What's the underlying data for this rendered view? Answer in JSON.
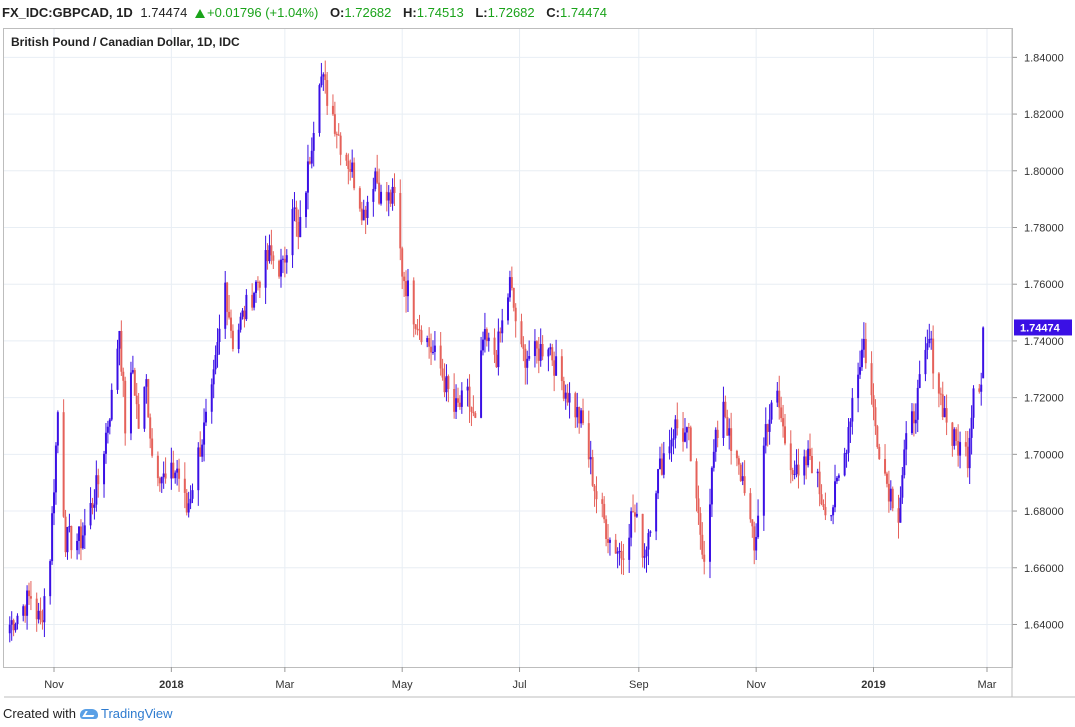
{
  "header": {
    "symbol": "FX_IDC:GBPCAD, 1D",
    "last": "1.74474",
    "change": "+0.01796 (+1.04%)",
    "open_label": "O:",
    "open": "1.72682",
    "high_label": "H:",
    "high": "1.74513",
    "low_label": "L:",
    "low": "1.72682",
    "close_label": "C:",
    "close": "1.74474"
  },
  "footer": {
    "created_with": "Created with",
    "brand": "TradingView"
  },
  "colors": {
    "up": "#3a10e5",
    "down": "#e5615a",
    "grid": "#e8eef4",
    "axis_text": "#333333",
    "price_tag": "#3a10e5"
  },
  "chart_data": {
    "type": "candlestick",
    "title": "British Pound / Canadian Dollar, 1D, IDC",
    "ylim": [
      1.625,
      1.85
    ],
    "yticks": [
      "1.64000",
      "1.66000",
      "1.68000",
      "1.70000",
      "1.72000",
      "1.74000",
      "1.76000",
      "1.78000",
      "1.80000",
      "1.82000",
      "1.84000"
    ],
    "xticks": [
      {
        "label": "Nov",
        "x": "2017-11-01",
        "bold": false
      },
      {
        "label": "2018",
        "x": "2018-01-01",
        "bold": true
      },
      {
        "label": "Mar",
        "x": "2018-03-01",
        "bold": false
      },
      {
        "label": "May",
        "x": "2018-05-01",
        "bold": false
      },
      {
        "label": "Jul",
        "x": "2018-07-01",
        "bold": false
      },
      {
        "label": "Sep",
        "x": "2018-09-01",
        "bold": false
      },
      {
        "label": "Nov",
        "x": "2018-11-01",
        "bold": false
      },
      {
        "label": "2019",
        "x": "2019-01-01",
        "bold": true
      },
      {
        "label": "Mar",
        "x": "2019-03-01",
        "bold": false
      }
    ],
    "x_range": [
      "2017-10-06",
      "2019-03-14"
    ],
    "last_price_label": "1.74474",
    "close_series": {
      "start": "2017-10-09",
      "end": "2019-02-27",
      "anchors": [
        [
          "2017-10-09",
          1.64
        ],
        [
          "2017-10-20",
          1.65
        ],
        [
          "2017-10-25",
          1.64
        ],
        [
          "2017-10-30",
          1.665
        ],
        [
          "2017-11-03",
          1.715
        ],
        [
          "2017-11-07",
          1.67
        ],
        [
          "2017-11-15",
          1.67
        ],
        [
          "2017-11-24",
          1.69
        ],
        [
          "2017-12-01",
          1.72
        ],
        [
          "2017-12-05",
          1.745
        ],
        [
          "2017-12-08",
          1.71
        ],
        [
          "2017-12-12",
          1.73
        ],
        [
          "2017-12-15",
          1.71
        ],
        [
          "2017-12-19",
          1.725
        ],
        [
          "2017-12-22",
          1.7
        ],
        [
          "2017-12-29",
          1.69
        ],
        [
          "2018-01-04",
          1.695
        ],
        [
          "2018-01-09",
          1.68
        ],
        [
          "2018-01-15",
          1.7
        ],
        [
          "2018-01-22",
          1.72
        ],
        [
          "2018-01-29",
          1.76
        ],
        [
          "2018-02-02",
          1.74
        ],
        [
          "2018-02-08",
          1.75
        ],
        [
          "2018-02-14",
          1.76
        ],
        [
          "2018-02-21",
          1.77
        ],
        [
          "2018-02-28",
          1.765
        ],
        [
          "2018-03-05",
          1.79
        ],
        [
          "2018-03-08",
          1.775
        ],
        [
          "2018-03-13",
          1.8
        ],
        [
          "2018-03-19",
          1.835
        ],
        [
          "2018-03-26",
          1.82
        ],
        [
          "2018-03-30",
          1.81
        ],
        [
          "2018-04-05",
          1.8
        ],
        [
          "2018-04-11",
          1.785
        ],
        [
          "2018-04-17",
          1.8
        ],
        [
          "2018-04-20",
          1.79
        ],
        [
          "2018-04-27",
          1.79
        ],
        [
          "2018-05-01",
          1.765
        ],
        [
          "2018-05-07",
          1.75
        ],
        [
          "2018-05-14",
          1.74
        ],
        [
          "2018-05-21",
          1.73
        ],
        [
          "2018-05-28",
          1.715
        ],
        [
          "2018-06-04",
          1.72
        ],
        [
          "2018-06-08",
          1.71
        ],
        [
          "2018-06-12",
          1.74
        ],
        [
          "2018-06-19",
          1.735
        ],
        [
          "2018-06-26",
          1.76
        ],
        [
          "2018-07-02",
          1.735
        ],
        [
          "2018-07-09",
          1.735
        ],
        [
          "2018-07-16",
          1.74
        ],
        [
          "2018-07-20",
          1.73
        ],
        [
          "2018-07-27",
          1.72
        ],
        [
          "2018-08-03",
          1.71
        ],
        [
          "2018-08-10",
          1.685
        ],
        [
          "2018-08-17",
          1.67
        ],
        [
          "2018-08-23",
          1.665
        ],
        [
          "2018-08-29",
          1.68
        ],
        [
          "2018-09-04",
          1.665
        ],
        [
          "2018-09-10",
          1.69
        ],
        [
          "2018-09-14",
          1.7
        ],
        [
          "2018-09-20",
          1.71
        ],
        [
          "2018-09-27",
          1.705
        ],
        [
          "2018-10-01",
          1.68
        ],
        [
          "2018-10-05",
          1.665
        ],
        [
          "2018-10-10",
          1.7
        ],
        [
          "2018-10-15",
          1.72
        ],
        [
          "2018-10-19",
          1.7
        ],
        [
          "2018-10-26",
          1.69
        ],
        [
          "2018-10-31",
          1.665
        ],
        [
          "2018-11-06",
          1.71
        ],
        [
          "2018-11-12",
          1.72
        ],
        [
          "2018-11-16",
          1.705
        ],
        [
          "2018-11-23",
          1.69
        ],
        [
          "2018-11-29",
          1.7
        ],
        [
          "2018-12-05",
          1.685
        ],
        [
          "2018-12-10",
          1.68
        ],
        [
          "2018-12-17",
          1.7
        ],
        [
          "2018-12-21",
          1.72
        ],
        [
          "2018-12-27",
          1.74
        ],
        [
          "2019-01-02",
          1.71
        ],
        [
          "2019-01-08",
          1.69
        ],
        [
          "2019-01-14",
          1.68
        ],
        [
          "2019-01-17",
          1.7
        ],
        [
          "2019-01-24",
          1.72
        ],
        [
          "2019-01-30",
          1.74
        ],
        [
          "2019-02-05",
          1.72
        ],
        [
          "2019-02-11",
          1.705
        ],
        [
          "2019-02-19",
          1.7
        ],
        [
          "2019-02-22",
          1.725
        ],
        [
          "2019-02-26",
          1.727
        ],
        [
          "2019-02-27",
          1.74474
        ]
      ]
    }
  }
}
